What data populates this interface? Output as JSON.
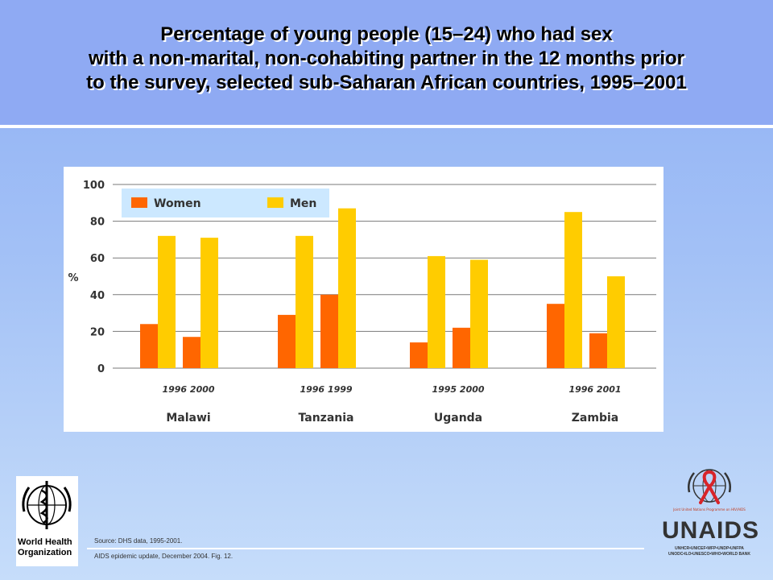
{
  "title": {
    "line1": "Percentage of young people (15–24) who had sex",
    "line2": "with a non-marital, non-cohabiting partner in the 12 months prior",
    "line3": "to the survey, selected sub-Saharan African countries, 1995–2001"
  },
  "chart_data": {
    "type": "bar",
    "ylabel": "%",
    "ylim": [
      0,
      100
    ],
    "yticks": [
      0,
      20,
      40,
      60,
      80,
      100
    ],
    "grid": true,
    "legend_placement": "top-left",
    "groups": [
      {
        "country": "Malawi",
        "years": [
          "1996",
          "2000"
        ],
        "women": [
          24,
          17
        ],
        "men": [
          72,
          71
        ]
      },
      {
        "country": "Tanzania",
        "years": [
          "1996",
          "1999"
        ],
        "women": [
          29,
          40
        ],
        "men": [
          72,
          87
        ]
      },
      {
        "country": "Uganda",
        "years": [
          "1995",
          "2000"
        ],
        "women": [
          14,
          22
        ],
        "men": [
          61,
          59
        ]
      },
      {
        "country": "Zambia",
        "years": [
          "1996",
          "2001"
        ],
        "women": [
          35,
          19
        ],
        "men": [
          85,
          50
        ]
      }
    ],
    "series": [
      {
        "name": "Women",
        "color": "#ff6600"
      },
      {
        "name": "Men",
        "color": "#ffcc00"
      }
    ]
  },
  "footer": {
    "source": "Source:   DHS data, 1995-2001.",
    "citation": "AIDS epidemic update, December 2004.  Fig. 12."
  },
  "logos": {
    "who_line1": "World Health",
    "who_line2": "Organization",
    "unaids_name": "UNAIDS",
    "unaids_tagline": "Joint United Nations Programme on HIV/AIDS",
    "unaids_members_1": "UNHCR•UNICEF•WFP•UNDP•UNFPA",
    "unaids_members_2": "UNODC•ILO•UNESCO•WHO•WORLD BANK"
  },
  "colors": {
    "women": "#ff6600",
    "men": "#ffcc00",
    "legend_bg": "#cce8ff",
    "ribbon": "#d8242a"
  }
}
